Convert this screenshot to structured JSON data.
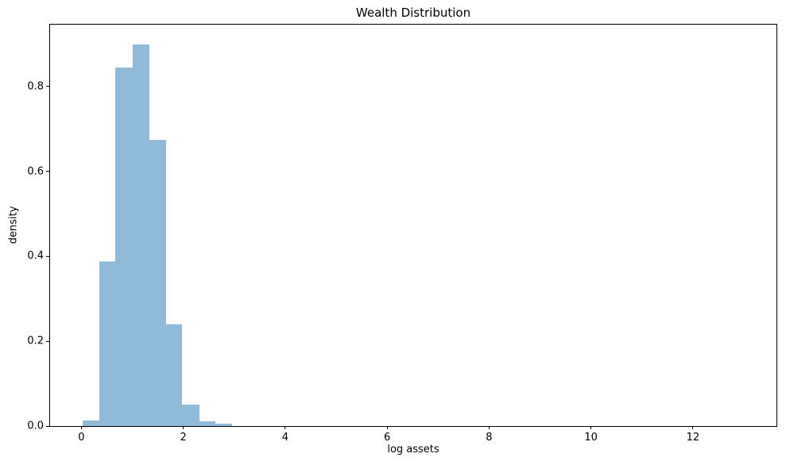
{
  "chart_data": {
    "type": "bar",
    "subtype": "histogram",
    "title": "Wealth Distribution",
    "xlabel": "log assets",
    "ylabel": "density",
    "xlim": [
      -0.615,
      13.64
    ],
    "ylim": [
      0,
      0.946
    ],
    "grid": false,
    "legend": null,
    "bar_color": "#8fbbd9",
    "axis_color": "#000000",
    "x_ticks": [
      {
        "value": 0,
        "label": "0"
      },
      {
        "value": 2,
        "label": "2"
      },
      {
        "value": 4,
        "label": "4"
      },
      {
        "value": 6,
        "label": "6"
      },
      {
        "value": 8,
        "label": "8"
      },
      {
        "value": 10,
        "label": "10"
      },
      {
        "value": 12,
        "label": "12"
      }
    ],
    "y_ticks": [
      {
        "value": 0.0,
        "label": "0.0"
      },
      {
        "value": 0.2,
        "label": "0.2"
      },
      {
        "value": 0.4,
        "label": "0.4"
      },
      {
        "value": 0.6,
        "label": "0.6"
      },
      {
        "value": 0.8,
        "label": "0.8"
      }
    ],
    "bins": [
      {
        "x0": 0.02,
        "x1": 0.35,
        "density": 0.013
      },
      {
        "x0": 0.35,
        "x1": 0.67,
        "density": 0.388
      },
      {
        "x0": 0.67,
        "x1": 1.0,
        "density": 0.845
      },
      {
        "x0": 1.0,
        "x1": 1.33,
        "density": 0.9
      },
      {
        "x0": 1.33,
        "x1": 1.66,
        "density": 0.674
      },
      {
        "x0": 1.66,
        "x1": 1.98,
        "density": 0.24
      },
      {
        "x0": 1.98,
        "x1": 2.31,
        "density": 0.051
      },
      {
        "x0": 2.31,
        "x1": 2.63,
        "density": 0.012
      },
      {
        "x0": 2.63,
        "x1": 2.96,
        "density": 0.005
      }
    ]
  }
}
